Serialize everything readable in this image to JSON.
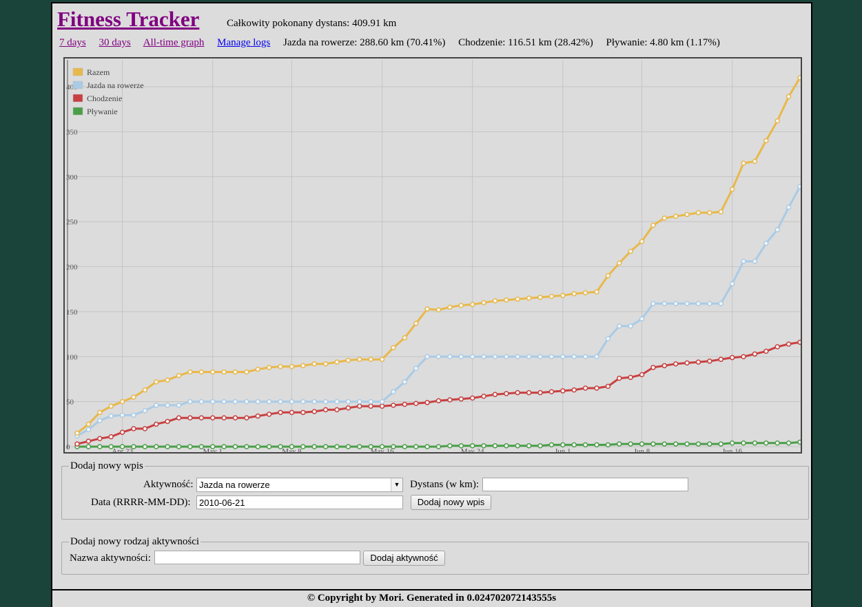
{
  "header": {
    "title": "Fitness Tracker",
    "total_distance": "Całkowity pokonany dystans: 409.91 km"
  },
  "nav": {
    "days7": "7 days",
    "days30": "30 days",
    "alltime": "All-time graph",
    "manage": "Manage logs"
  },
  "stats": {
    "cycling": "Jazda na rowerze: 288.60 km (70.41%)",
    "walking": "Chodzenie: 116.51 km (28.42%)",
    "swimming": "Pływanie: 4.80 km (1.17%)"
  },
  "chart_data": {
    "type": "line",
    "x_tick_labels": [
      "Apr 23",
      "May 1",
      "May 8",
      "May 16",
      "May 24",
      "Jun 1",
      "Jun 8",
      "Jun 16"
    ],
    "y_tick_labels": [
      "0",
      "50",
      "100",
      "150",
      "200",
      "250",
      "300",
      "350",
      "400"
    ],
    "ylim": [
      0,
      400
    ],
    "grid": true,
    "legend_position": "top-left",
    "series": [
      {
        "name": "Razem",
        "color": "#e8b84a",
        "values": [
          15,
          25,
          38,
          45,
          50,
          55,
          63,
          72,
          74,
          79,
          83,
          83,
          83,
          83,
          83,
          83,
          86,
          88,
          89,
          89,
          90,
          92,
          92,
          94,
          96,
          97,
          97,
          97,
          110,
          121,
          137,
          153,
          152,
          155,
          157,
          158,
          160,
          162,
          163,
          164,
          165,
          166,
          167,
          168,
          170,
          171,
          172,
          190,
          204,
          217,
          228,
          246,
          254,
          256,
          258,
          260,
          260,
          261,
          286,
          315,
          317,
          340,
          362,
          389,
          410
        ],
        "labels": {}
      },
      {
        "name": "Jazda na rowerze",
        "color": "#a9cbe6",
        "values": [
          12,
          19,
          29,
          34,
          35,
          35,
          40,
          46,
          46,
          46,
          50,
          50,
          50,
          50,
          50,
          50,
          50,
          50,
          50,
          50,
          50,
          50,
          50,
          50,
          50,
          50,
          50,
          50,
          61,
          72,
          87,
          100,
          100,
          100,
          100,
          100,
          100,
          100,
          100,
          100,
          100,
          100,
          100,
          100,
          100,
          100,
          100,
          120,
          134,
          134,
          142,
          159,
          159,
          159,
          159,
          159,
          159,
          159,
          181,
          206,
          206,
          226,
          241,
          266,
          289
        ],
        "labels": {}
      },
      {
        "name": "Chodzenie",
        "color": "#c84040",
        "values": [
          3,
          6,
          9,
          11,
          16,
          20,
          20,
          25,
          28,
          32,
          32,
          32,
          32,
          32,
          32,
          32,
          34,
          36,
          38,
          38,
          38,
          39,
          41,
          41,
          43,
          45,
          45,
          45,
          46,
          47,
          48,
          49,
          51,
          52,
          53,
          54,
          56,
          58,
          59,
          60,
          60,
          60,
          61,
          62,
          63,
          65,
          65,
          67,
          76,
          77,
          80,
          88,
          90,
          92,
          93,
          94,
          95,
          97,
          99,
          100,
          103,
          106,
          111,
          114,
          116
        ],
        "labels": {}
      },
      {
        "name": "Pływanie",
        "color": "#4a9e48",
        "values": [
          0,
          0,
          0,
          0,
          0,
          0,
          0,
          0,
          0,
          0,
          0,
          0,
          0,
          0,
          0,
          0,
          0,
          0,
          0,
          0,
          0,
          0,
          0,
          0,
          0,
          0,
          0,
          0,
          0,
          0,
          0,
          0,
          0,
          1,
          1,
          1,
          1,
          1,
          1,
          1,
          1,
          1,
          2,
          2,
          2,
          2,
          2,
          2,
          3,
          3,
          3,
          3,
          3,
          3,
          3,
          3,
          3,
          3,
          4,
          4,
          4,
          4,
          4,
          4,
          5
        ],
        "labels": {}
      }
    ]
  },
  "form_entry": {
    "legend": "Dodaj nowy wpis",
    "activity_label": "Aktywność:",
    "activity_value": "Jazda na rowerze",
    "distance_label": "Dystans (w km):",
    "distance_value": "",
    "date_label": "Data (RRRR-MM-DD):",
    "date_value": "2010-06-21",
    "submit": "Dodaj nowy wpis"
  },
  "form_activity": {
    "legend": "Dodaj nowy rodzaj aktywności",
    "name_label": "Nazwa aktywności:",
    "name_value": "",
    "submit": "Dodaj aktywność"
  },
  "footer": {
    "text": "© Copyright by Mori. Generated in 0.024702072143555s"
  }
}
